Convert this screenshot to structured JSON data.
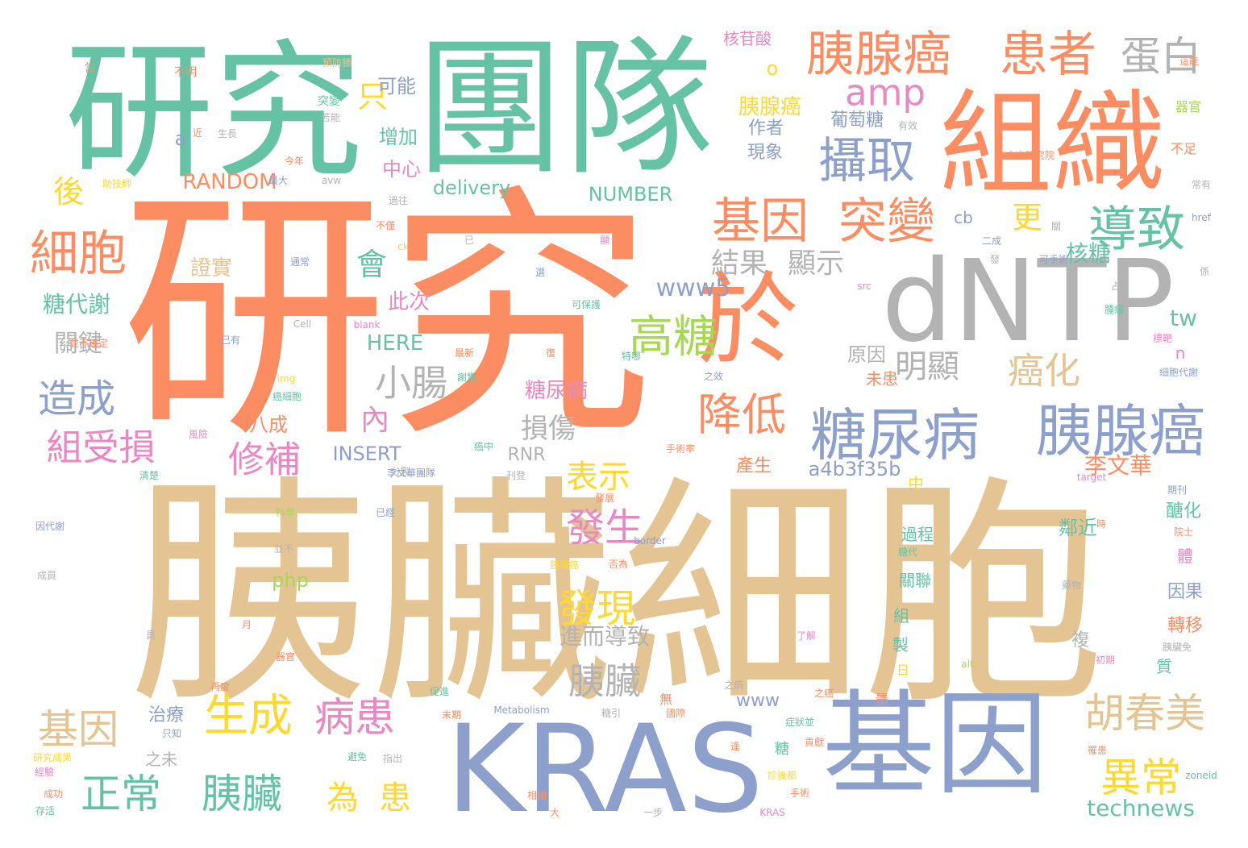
{
  "colors": {
    "teal": "#66c2a5",
    "orange": "#fc8d62",
    "blue": "#8da0cb",
    "pink": "#e78ac3",
    "green": "#a6d854",
    "yellow": "#ffd92f",
    "tan": "#e5c494",
    "gray": "#b3b3b3"
  },
  "words": [
    {
      "text": "研究",
      "color": "orange",
      "weight": 1.0
    },
    {
      "text": "胰臟",
      "color": "tan",
      "weight": 0.92
    },
    {
      "text": "細胞",
      "color": "tan",
      "weight": 0.92
    },
    {
      "text": "團隊",
      "color": "teal",
      "weight": 0.6
    },
    {
      "text": "研究",
      "color": "teal",
      "weight": 0.55
    },
    {
      "text": "組織",
      "color": "orange",
      "weight": 0.42
    },
    {
      "text": "dNTP",
      "color": "gray",
      "weight": 0.42
    },
    {
      "text": "KRAS",
      "color": "blue",
      "weight": 0.45
    },
    {
      "text": "基因",
      "color": "blue",
      "weight": 0.42
    },
    {
      "text": "於",
      "color": "orange",
      "weight": 0.38
    },
    {
      "text": "胰腺癌",
      "color": "orange",
      "weight": 0.2
    },
    {
      "text": "患者",
      "color": "orange",
      "weight": 0.2
    },
    {
      "text": "蛋白",
      "color": "gray",
      "weight": 0.16
    },
    {
      "text": "糖尿病",
      "color": "blue",
      "weight": 0.22
    },
    {
      "text": "胰腺癌",
      "color": "blue",
      "weight": 0.22
    },
    {
      "text": "基因",
      "color": "orange",
      "weight": 0.18
    },
    {
      "text": "突變",
      "color": "orange",
      "weight": 0.18
    },
    {
      "text": "導致",
      "color": "teal",
      "weight": 0.16
    },
    {
      "text": "攝取",
      "color": "blue",
      "weight": 0.17
    },
    {
      "text": "細胞",
      "color": "orange",
      "weight": 0.18
    },
    {
      "text": "高糖",
      "color": "green",
      "weight": 0.15
    },
    {
      "text": "降低",
      "color": "orange",
      "weight": 0.16
    },
    {
      "text": "正常",
      "color": "teal",
      "weight": 0.15
    },
    {
      "text": "胰臟",
      "color": "teal",
      "weight": 0.15
    },
    {
      "text": "生成",
      "color": "yellow",
      "weight": 0.15
    },
    {
      "text": "病患",
      "color": "pink",
      "weight": 0.15
    },
    {
      "text": "胡春美",
      "color": "tan",
      "weight": 0.14
    },
    {
      "text": "異常",
      "color": "yellow",
      "weight": 0.14
    },
    {
      "text": "基因",
      "color": "tan",
      "weight": 0.15
    },
    {
      "text": "為",
      "color": "yellow",
      "weight": 0.1
    },
    {
      "text": "患",
      "color": "yellow",
      "weight": 0.1
    },
    {
      "text": "amp",
      "color": "pink",
      "weight": 0.1
    },
    {
      "text": "造成",
      "color": "blue",
      "weight": 0.12
    },
    {
      "text": "組受損",
      "color": "pink",
      "weight": 0.11
    },
    {
      "text": "修補",
      "color": "pink",
      "weight": 0.11
    },
    {
      "text": "小腸",
      "color": "gray",
      "weight": 0.11
    },
    {
      "text": "癌化",
      "color": "tan",
      "weight": 0.11
    },
    {
      "text": "明顯",
      "color": "gray",
      "weight": 0.1
    },
    {
      "text": "結果",
      "color": "gray",
      "weight": 0.08
    },
    {
      "text": "顯示",
      "color": "gray",
      "weight": 0.08
    },
    {
      "text": "發生",
      "color": "pink",
      "weight": 0.1
    },
    {
      "text": "發現",
      "color": "yellow",
      "weight": 0.1
    },
    {
      "text": "表示",
      "color": "yellow",
      "weight": 0.1
    },
    {
      "text": "胰臟",
      "color": "gray",
      "weight": 0.1
    },
    {
      "text": "李文華",
      "color": "orange",
      "weight": 0.07
    },
    {
      "text": "www5",
      "color": "blue",
      "weight": 0.07
    },
    {
      "text": "會",
      "color": "teal",
      "weight": 0.08
    },
    {
      "text": "更",
      "color": "yellow",
      "weight": 0.08
    },
    {
      "text": "只",
      "color": "yellow",
      "weight": 0.08
    },
    {
      "text": "後",
      "color": "yellow",
      "weight": 0.08
    },
    {
      "text": "內",
      "color": "pink",
      "weight": 0.08
    },
    {
      "text": "tw",
      "color": "teal",
      "weight": 0.07
    },
    {
      "text": "technews",
      "color": "teal",
      "weight": 0.06
    },
    {
      "text": "損傷",
      "color": "gray",
      "weight": 0.07
    },
    {
      "text": "進而導致",
      "color": "gray",
      "weight": 0.06
    },
    {
      "text": "關鍵",
      "color": "gray",
      "weight": 0.06
    },
    {
      "text": "糖代謝",
      "color": "teal",
      "weight": 0.06
    },
    {
      "text": "核糖",
      "color": "teal",
      "weight": 0.05
    },
    {
      "text": "證實",
      "color": "tan",
      "weight": 0.05
    },
    {
      "text": "此次",
      "color": "pink",
      "weight": 0.05
    },
    {
      "text": "HERE",
      "color": "teal",
      "weight": 0.04
    },
    {
      "text": "INSERT",
      "color": "blue",
      "weight": 0.04
    },
    {
      "text": "RANDOM",
      "color": "orange",
      "weight": 0.05
    },
    {
      "text": "NUMBER",
      "color": "teal",
      "weight": 0.05
    },
    {
      "text": "delivery",
      "color": "teal",
      "weight": 0.05
    },
    {
      "text": "中心",
      "color": "pink",
      "weight": 0.05
    },
    {
      "text": "增加",
      "color": "teal",
      "weight": 0.05
    },
    {
      "text": "可能",
      "color": "blue",
      "weight": 0.05
    },
    {
      "text": "胰腺癌",
      "color": "yellow",
      "weight": 0.05
    },
    {
      "text": "葡萄糖",
      "color": "blue",
      "weight": 0.04
    },
    {
      "text": "現象",
      "color": "blue",
      "weight": 0.05
    },
    {
      "text": "作者",
      "color": "blue",
      "weight": 0.04
    },
    {
      "text": "核苷酸",
      "color": "pink",
      "weight": 0.04
    },
    {
      "text": "原因",
      "color": "gray",
      "weight": 0.05
    },
    {
      "text": "糖尿病",
      "color": "pink",
      "weight": 0.04
    },
    {
      "text": "未患",
      "color": "orange",
      "weight": 0.05
    },
    {
      "text": "八成",
      "color": "orange",
      "weight": 0.04
    },
    {
      "text": "RNR",
      "color": "gray",
      "weight": 0.04
    },
    {
      "text": "a4b3f35b",
      "color": "blue",
      "weight": 0.05
    },
    {
      "text": "產生",
      "color": "orange",
      "weight": 0.04
    },
    {
      "text": "中",
      "color": "yellow",
      "weight": 0.05
    },
    {
      "text": "鄰近",
      "color": "teal",
      "weight": 0.05
    },
    {
      "text": "過程",
      "color": "teal",
      "weight": 0.04
    },
    {
      "text": "關聯",
      "color": "teal",
      "weight": 0.04
    },
    {
      "text": "組",
      "color": "teal",
      "weight": 0.04
    },
    {
      "text": "製",
      "color": "teal",
      "weight": 0.04
    },
    {
      "text": "日",
      "color": "yellow",
      "weight": 0.03
    },
    {
      "text": "量",
      "color": "orange",
      "weight": 0.03
    },
    {
      "text": "複",
      "color": "gray",
      "weight": 0.04
    },
    {
      "text": "質",
      "color": "teal",
      "weight": 0.04
    },
    {
      "text": "因果",
      "color": "blue",
      "weight": 0.04
    },
    {
      "text": "轉移",
      "color": "orange",
      "weight": 0.04
    },
    {
      "text": "醣化",
      "color": "teal",
      "weight": 0.04
    },
    {
      "text": "體",
      "color": "pink",
      "weight": 0.04
    },
    {
      "text": "cb",
      "color": "blue",
      "weight": 0.04
    },
    {
      "text": "n",
      "color": "pink",
      "weight": 0.04
    },
    {
      "text": "a",
      "color": "blue",
      "weight": 0.05
    },
    {
      "text": "o",
      "color": "yellow",
      "weight": 0.05
    },
    {
      "text": "php",
      "color": "green",
      "weight": 0.04
    },
    {
      "text": "www",
      "color": "blue",
      "weight": 0.04
    },
    {
      "text": "治療",
      "color": "blue",
      "weight": 0.04
    },
    {
      "text": "之未",
      "color": "gray",
      "weight": 0.03
    },
    {
      "text": "糖",
      "color": "teal",
      "weight": 0.03
    },
    {
      "text": "無",
      "color": "orange",
      "weight": 0.03
    },
    {
      "text": "器官",
      "color": "green",
      "weight": 0.03
    },
    {
      "text": "不足",
      "color": "orange",
      "weight": 0.03
    },
    {
      "text": "中央研究院",
      "color": "orange",
      "weight": 0.02
    },
    {
      "text": "當",
      "color": "orange",
      "weight": 0.02
    },
    {
      "text": "不明",
      "color": "orange",
      "weight": 0.02
    },
    {
      "text": "預防勝",
      "color": "tan",
      "weight": 0.02
    },
    {
      "text": "突變",
      "color": "teal",
      "weight": 0.02
    },
    {
      "text": "若能",
      "color": "gray",
      "weight": 0.02
    },
    {
      "text": "生長",
      "color": "gray",
      "weight": 0.02
    },
    {
      "text": "近",
      "color": "orange",
      "weight": 0.02
    },
    {
      "text": "今年",
      "color": "orange",
      "weight": 0.02
    },
    {
      "text": "助技師",
      "color": "yellow",
      "weight": 0.02
    },
    {
      "text": "最大",
      "color": "blue",
      "weight": 0.02
    },
    {
      "text": "avw",
      "color": "gray",
      "weight": 0.02
    },
    {
      "text": "過往",
      "color": "gray",
      "weight": 0.02
    },
    {
      "text": "不僅",
      "color": "orange",
      "weight": 0.02
    },
    {
      "text": "ck",
      "color": "yellow",
      "weight": 0.02
    },
    {
      "text": "已",
      "color": "gray",
      "weight": 0.02
    },
    {
      "text": "顯",
      "color": "pink",
      "weight": 0.02
    },
    {
      "text": "二成",
      "color": "blue",
      "weight": 0.02
    },
    {
      "text": "關",
      "color": "gray",
      "weight": 0.02
    },
    {
      "text": "href",
      "color": "blue",
      "weight": 0.02
    },
    {
      "text": "常有",
      "color": "gray",
      "weight": 0.02
    },
    {
      "text": "有效",
      "color": "gray",
      "weight": 0.02
    },
    {
      "text": "這能",
      "color": "orange",
      "weight": 0.02
    },
    {
      "text": "係",
      "color": "gray",
      "weight": 0.02
    },
    {
      "text": "發",
      "color": "gray",
      "weight": 0.02
    },
    {
      "text": "可手術",
      "color": "blue",
      "weight": 0.02
    },
    {
      "text": "src",
      "color": "pink",
      "weight": 0.02
    },
    {
      "text": "占",
      "color": "gray",
      "weight": 0.02
    },
    {
      "text": "腫瘤",
      "color": "teal",
      "weight": 0.02
    },
    {
      "text": "標靶",
      "color": "pink",
      "weight": 0.02
    },
    {
      "text": "細胞代謝",
      "color": "blue",
      "weight": 0.02
    },
    {
      "text": "通常",
      "color": "blue",
      "weight": 0.02
    },
    {
      "text": "選",
      "color": "blue",
      "weight": 0.02
    },
    {
      "text": "可保護",
      "color": "teal",
      "weight": 0.02
    },
    {
      "text": "Cell",
      "color": "gray",
      "weight": 0.02
    },
    {
      "text": "blank",
      "color": "pink",
      "weight": 0.02
    },
    {
      "text": "已有",
      "color": "blue",
      "weight": 0.02
    },
    {
      "text": "並不確定",
      "color": "orange",
      "weight": 0.02
    },
    {
      "text": "最新",
      "color": "orange",
      "weight": 0.02
    },
    {
      "text": "復",
      "color": "orange",
      "weight": 0.02
    },
    {
      "text": "特哪",
      "color": "teal",
      "weight": 0.02
    },
    {
      "text": "謝實",
      "color": "teal",
      "weight": 0.02
    },
    {
      "text": "之效",
      "color": "blue",
      "weight": 0.02
    },
    {
      "text": "img",
      "color": "yellow",
      "weight": 0.02
    },
    {
      "text": "癌細胞",
      "color": "teal",
      "weight": 0.02
    },
    {
      "text": "風險",
      "color": "pink",
      "weight": 0.02
    },
    {
      "text": "癌中",
      "color": "teal",
      "weight": 0.02
    },
    {
      "text": "分裂",
      "color": "gray",
      "weight": 0.02
    },
    {
      "text": "手術率",
      "color": "orange",
      "weight": 0.02
    },
    {
      "text": "刊登",
      "color": "gray",
      "weight": 0.02
    },
    {
      "text": "target",
      "color": "pink",
      "weight": 0.02
    },
    {
      "text": "期刊",
      "color": "blue",
      "weight": 0.02
    },
    {
      "text": "清楚",
      "color": "teal",
      "weight": 0.02
    },
    {
      "text": "李文華團隊",
      "color": "blue",
      "weight": 0.02
    },
    {
      "text": "發展",
      "color": "orange",
      "weight": 0.02
    },
    {
      "text": "時",
      "color": "orange",
      "weight": 0.02
    },
    {
      "text": "院士",
      "color": "orange",
      "weight": 0.02
    },
    {
      "text": "因代謝",
      "color": "blue",
      "weight": 0.02
    },
    {
      "text": "科學",
      "color": "green",
      "weight": 0.02
    },
    {
      "text": "已經",
      "color": "blue",
      "weight": 0.02
    },
    {
      "text": "並不",
      "color": "gray",
      "weight": 0.02
    },
    {
      "text": "成員",
      "color": "gray",
      "weight": 0.02
    },
    {
      "text": "胰臟癌",
      "color": "yellow",
      "weight": 0.02
    },
    {
      "text": "否為",
      "color": "orange",
      "weight": 0.02
    },
    {
      "text": "border",
      "color": "blue",
      "weight": 0.02
    },
    {
      "text": "糖代",
      "color": "teal",
      "weight": 0.02
    },
    {
      "text": "藥物",
      "color": "gray",
      "weight": 0.02
    },
    {
      "text": "員",
      "color": "gray",
      "weight": 0.02
    },
    {
      "text": "月",
      "color": "orange",
      "weight": 0.02
    },
    {
      "text": "了解",
      "color": "pink",
      "weight": 0.02
    },
    {
      "text": "器官",
      "color": "orange",
      "weight": 0.02
    },
    {
      "text": "胰臟免",
      "color": "gray",
      "weight": 0.02
    },
    {
      "text": "初期",
      "color": "pink",
      "weight": 0.02
    },
    {
      "text": "alt",
      "color": "green",
      "weight": 0.02
    },
    {
      "text": "之病",
      "color": "gray",
      "weight": 0.02
    },
    {
      "text": "之癌",
      "color": "orange",
      "weight": 0.02
    },
    {
      "text": "再度",
      "color": "orange",
      "weight": 0.02
    },
    {
      "text": "促進",
      "color": "teal",
      "weight": 0.02
    },
    {
      "text": "末期",
      "color": "orange",
      "weight": 0.02
    },
    {
      "text": "Metabolism",
      "color": "blue",
      "weight": 0.02
    },
    {
      "text": "糖引",
      "color": "gray",
      "weight": 0.02
    },
    {
      "text": "國際",
      "color": "orange",
      "weight": 0.02
    },
    {
      "text": "症狀並",
      "color": "teal",
      "weight": 0.02
    },
    {
      "text": "只知",
      "color": "blue",
      "weight": 0.02
    },
    {
      "text": "研究成果",
      "color": "yellow",
      "weight": 0.02
    },
    {
      "text": "逢",
      "color": "orange",
      "weight": 0.02
    },
    {
      "text": "貢獻",
      "color": "orange",
      "weight": 0.02
    },
    {
      "text": "罹患",
      "color": "orange",
      "weight": 0.02
    },
    {
      "text": "避免",
      "color": "teal",
      "weight": 0.02
    },
    {
      "text": "指出",
      "color": "gray",
      "weight": 0.02
    },
    {
      "text": "經驗",
      "color": "pink",
      "weight": 0.02
    },
    {
      "text": "成功",
      "color": "orange",
      "weight": 0.02
    },
    {
      "text": "診後都",
      "color": "yellow",
      "weight": 0.02
    },
    {
      "text": "手術",
      "color": "orange",
      "weight": 0.02
    },
    {
      "text": "zoneid",
      "color": "teal",
      "weight": 0.02
    },
    {
      "text": "相關",
      "color": "orange",
      "weight": 0.02
    },
    {
      "text": "存活",
      "color": "teal",
      "weight": 0.02
    },
    {
      "text": "大",
      "color": "orange",
      "weight": 0.02
    },
    {
      "text": "一步",
      "color": "gray",
      "weight": 0.02
    },
    {
      "text": "KRAS",
      "color": "pink",
      "weight": 0.02
    }
  ]
}
